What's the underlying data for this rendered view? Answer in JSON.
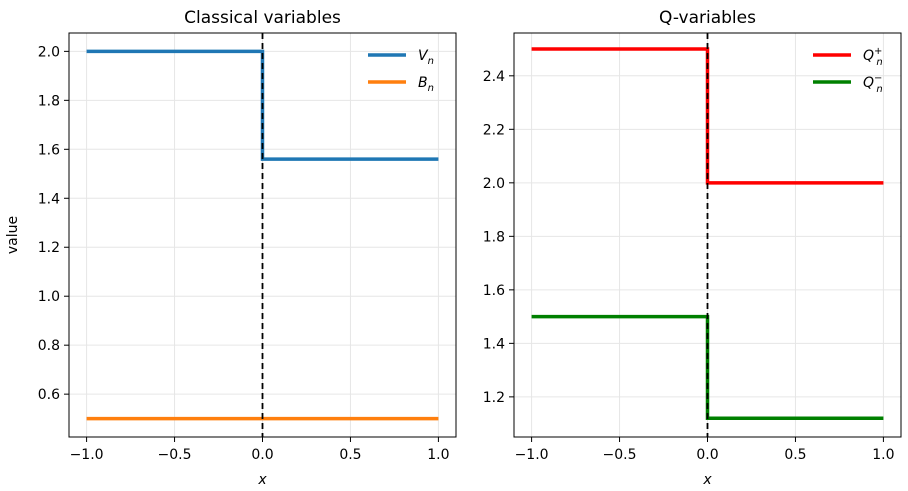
{
  "chart_data": [
    {
      "type": "line",
      "title": "Classical variables",
      "xlabel": "x",
      "ylabel": "value",
      "xlim": [
        -1.1,
        1.1
      ],
      "ylim": [
        0.425,
        2.075
      ],
      "xticks": [
        -1.0,
        -0.5,
        0.0,
        0.5,
        1.0
      ],
      "xtick_labels": [
        "−1.0",
        "−0.5",
        "0.0",
        "0.5",
        "1.0"
      ],
      "yticks": [
        0.6,
        0.8,
        1.0,
        1.2,
        1.4,
        1.6,
        1.8,
        2.0
      ],
      "ytick_labels": [
        "0.6",
        "0.8",
        "1.0",
        "1.2",
        "1.4",
        "1.6",
        "1.8",
        "2.0"
      ],
      "grid": true,
      "legend_position": "top-right",
      "vline": {
        "x": 0.0,
        "style": "dashed",
        "color": "#000000"
      },
      "series": [
        {
          "name": "V",
          "name_sub": "n",
          "color": "#1f77b4",
          "x": [
            -1.0,
            0.0,
            0.0,
            1.0
          ],
          "y": [
            2.0,
            2.0,
            1.56,
            1.56
          ]
        },
        {
          "name": "B",
          "name_sub": "n",
          "color": "#ff7f0e",
          "x": [
            -1.0,
            1.0
          ],
          "y": [
            0.5,
            0.5
          ]
        }
      ]
    },
    {
      "type": "line",
      "title": "Q-variables",
      "xlabel": "x",
      "ylabel": "",
      "xlim": [
        -1.1,
        1.1
      ],
      "ylim": [
        1.05,
        2.56
      ],
      "xticks": [
        -1.0,
        -0.5,
        0.0,
        0.5,
        1.0
      ],
      "xtick_labels": [
        "−1.0",
        "−0.5",
        "0.0",
        "0.5",
        "1.0"
      ],
      "yticks": [
        1.2,
        1.4,
        1.6,
        1.8,
        2.0,
        2.2,
        2.4
      ],
      "ytick_labels": [
        "1.2",
        "1.4",
        "1.6",
        "1.8",
        "2.0",
        "2.2",
        "2.4"
      ],
      "grid": true,
      "legend_position": "top-right",
      "vline": {
        "x": 0.0,
        "style": "dashed",
        "color": "#000000"
      },
      "series": [
        {
          "name": "Q",
          "name_sub": "n",
          "name_sup": "+",
          "color": "#ff0000",
          "x": [
            -1.0,
            0.0,
            0.0,
            1.0
          ],
          "y": [
            2.5,
            2.5,
            2.0,
            2.0
          ]
        },
        {
          "name": "Q",
          "name_sub": "n",
          "name_sup": "−",
          "color": "#008000",
          "x": [
            -1.0,
            0.0,
            0.0,
            1.0
          ],
          "y": [
            1.5,
            1.5,
            1.12,
            1.12
          ]
        }
      ]
    }
  ]
}
